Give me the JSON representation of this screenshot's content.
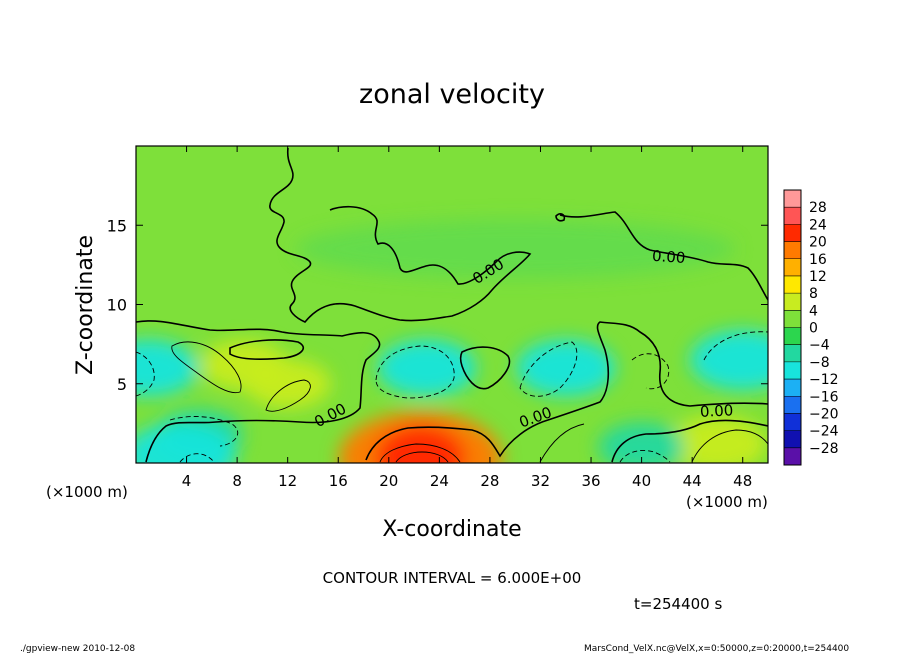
{
  "chart_data": {
    "type": "heatmap",
    "subtype": "filled-contour",
    "title": "zonal velocity",
    "xlabel": "X-coordinate",
    "ylabel": "Z-coordinate",
    "x_unit_note": "(×1000 m)",
    "y_unit_note": "(×1000 m)",
    "xlim": [
      0,
      50
    ],
    "ylim": [
      0,
      20
    ],
    "x_ticks": [
      "4",
      "8",
      "12",
      "16",
      "20",
      "24",
      "28",
      "32",
      "36",
      "40",
      "44",
      "48"
    ],
    "y_ticks": [
      "5",
      "10",
      "15"
    ],
    "grid": false,
    "colorbar": {
      "placement": "right",
      "labels": [
        "28",
        "24",
        "20",
        "16",
        "12",
        "8",
        "4",
        "0",
        "−4",
        "−8",
        "−12",
        "−16",
        "−20",
        "−24",
        "−28"
      ],
      "colors": [
        "#ff9999",
        "#ff5555",
        "#ff2a00",
        "#ff7a00",
        "#ffb000",
        "#ffe800",
        "#c8ec20",
        "#7ee03a",
        "#2cd64e",
        "#22d8a0",
        "#18e4dc",
        "#1cb0f4",
        "#1a70f0",
        "#1030d8",
        "#1010b0",
        "#5a10a8"
      ]
    },
    "contour_levels": [
      -12,
      -6,
      0,
      6,
      12,
      18
    ],
    "contour_labels": [
      "0.00",
      "0.00",
      "0.00",
      "0.00",
      "0.00"
    ],
    "features": [
      {
        "x": 22.5,
        "z": 0.3,
        "value": 18
      },
      {
        "x": 8.5,
        "z": 6.2,
        "value": 6
      },
      {
        "x": 12.0,
        "z": 5.0,
        "value": 6
      },
      {
        "x": 46.0,
        "z": 1.2,
        "value": 8
      },
      {
        "x": 5.0,
        "z": 1.8,
        "value": -6
      },
      {
        "x": 23.0,
        "z": 6.0,
        "value": -8
      },
      {
        "x": 34.0,
        "z": 6.0,
        "value": -8
      },
      {
        "x": 48.0,
        "z": 6.5,
        "value": -9
      },
      {
        "x": 40.0,
        "z": 1.0,
        "value": -6
      },
      {
        "x": 1.0,
        "z": 6.0,
        "value": -8
      },
      {
        "x": 3.5,
        "z": 0.5,
        "value": -10
      }
    ],
    "annotations": {
      "contour_interval": "CONTOUR INTERVAL = 6.000E+00",
      "time": "t=254400 s"
    }
  },
  "footer": {
    "left": "./gpview-new  2010-12-08",
    "right": "MarsCond_VelX.nc@VelX,x=0:50000,z=0:20000,t=254400"
  }
}
